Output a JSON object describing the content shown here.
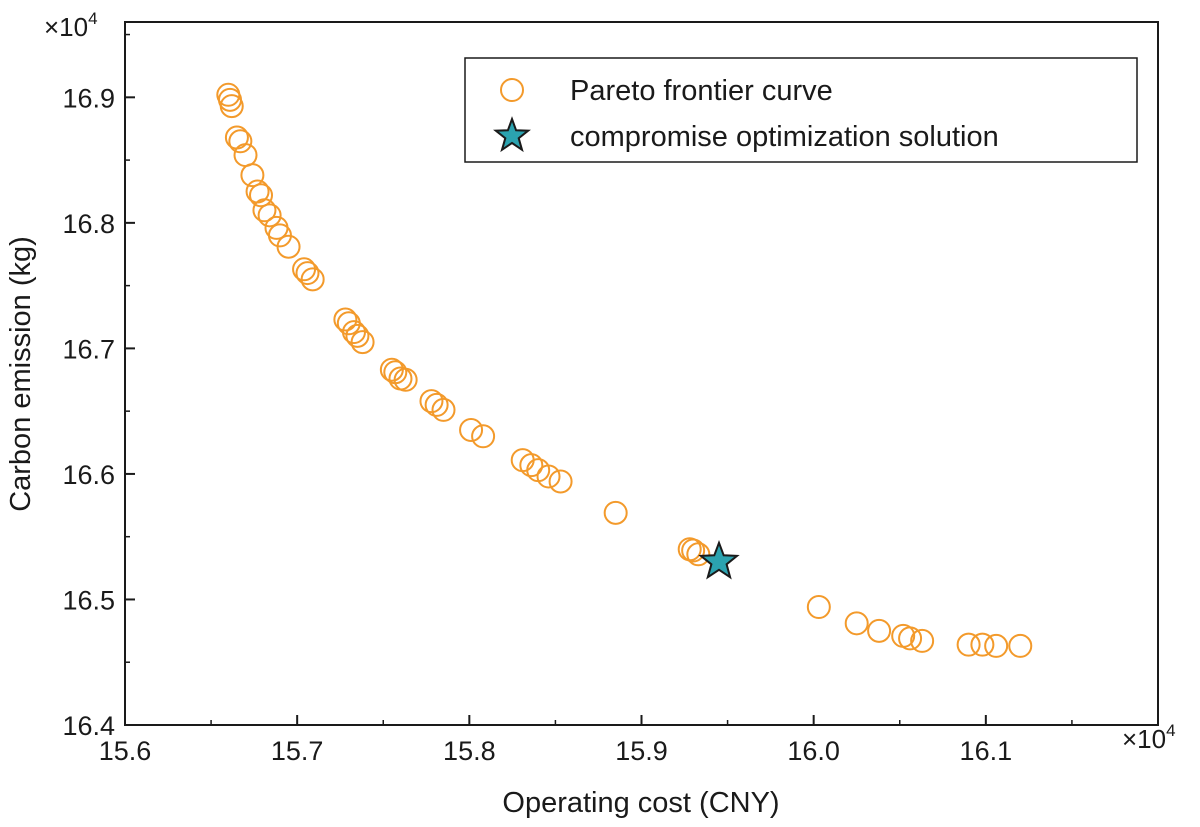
{
  "chart_data": {
    "type": "scatter",
    "xlabel": "Operating cost (CNY)",
    "ylabel": "Carbon emission (kg)",
    "x_multiplier": {
      "base": "×10",
      "exponent": "4"
    },
    "y_multiplier": {
      "base": "×10",
      "exponent": "4"
    },
    "xlim": [
      15.6,
      16.2
    ],
    "ylim": [
      16.4,
      16.96
    ],
    "xticks": [
      "15.6",
      "15.7",
      "15.8",
      "15.9",
      "16.0",
      "16.1"
    ],
    "yticks": [
      "16.4",
      "16.5",
      "16.6",
      "16.7",
      "16.8",
      "16.9"
    ],
    "xtick_values": [
      15.6,
      15.7,
      15.8,
      15.9,
      16.0,
      16.1
    ],
    "ytick_values": [
      16.4,
      16.5,
      16.6,
      16.7,
      16.8,
      16.9
    ],
    "grid": false,
    "legend_placement": "top-right",
    "series": [
      {
        "name": "Pareto frontier curve",
        "marker": "circle-open",
        "color": "#F39A2B",
        "x": [
          15.66,
          15.661,
          15.662,
          15.665,
          15.667,
          15.67,
          15.674,
          15.677,
          15.679,
          15.681,
          15.684,
          15.688,
          15.69,
          15.695,
          15.704,
          15.706,
          15.709,
          15.728,
          15.73,
          15.733,
          15.735,
          15.738,
          15.755,
          15.757,
          15.76,
          15.763,
          15.778,
          15.781,
          15.785,
          15.801,
          15.808,
          15.831,
          15.836,
          15.84,
          15.846,
          15.853,
          15.885,
          15.928,
          15.93,
          15.933,
          16.003,
          16.025,
          16.038,
          16.052,
          16.056,
          16.063,
          16.09,
          16.098,
          16.106,
          16.12
        ],
        "y": [
          16.902,
          16.898,
          16.893,
          16.868,
          16.865,
          16.854,
          16.838,
          16.825,
          16.822,
          16.81,
          16.806,
          16.796,
          16.79,
          16.781,
          16.763,
          16.76,
          16.755,
          16.723,
          16.72,
          16.713,
          16.71,
          16.705,
          16.683,
          16.681,
          16.676,
          16.675,
          16.658,
          16.655,
          16.651,
          16.635,
          16.63,
          16.611,
          16.607,
          16.603,
          16.598,
          16.594,
          16.569,
          16.54,
          16.539,
          16.536,
          16.494,
          16.481,
          16.475,
          16.471,
          16.469,
          16.467,
          16.464,
          16.464,
          16.463,
          16.463
        ]
      },
      {
        "name": "compromise optimization solution",
        "marker": "star",
        "color": "#2BA3B0",
        "x": [
          15.945
        ],
        "y": [
          16.53
        ]
      }
    ]
  }
}
